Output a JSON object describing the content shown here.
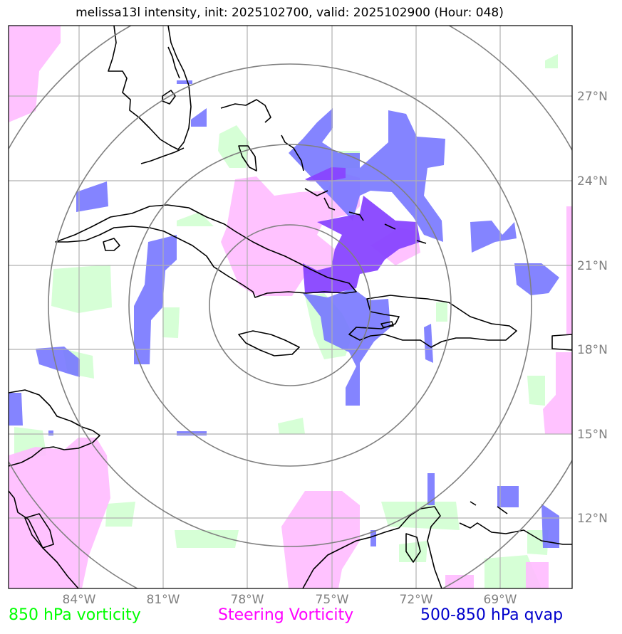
{
  "title": "melissa13l intensity, init: 2025102700, valid: 2025102900 (Hour: 048)",
  "colors": {
    "vorticity_850": "#ccffcc",
    "steering_vorticity": "#ffbbff",
    "qvap": "#7777ff",
    "overlap": "#8844ff",
    "coast": "#000000",
    "grid": "#b0b0b0",
    "rings": "#808080"
  },
  "axes": {
    "lon_ticks": [
      "84°W",
      "81°W",
      "78°W",
      "75°W",
      "72°W",
      "69°W"
    ],
    "lat_ticks": [
      "27°N",
      "24°N",
      "21°N",
      "18°N",
      "15°N",
      "12°N"
    ]
  },
  "legend": {
    "vorticity_850": "850 hPa vorticity",
    "steering_vorticity": "Steering Vorticity",
    "qvap": "500-850 hPa qvap"
  },
  "storm_center": {
    "lon": "76.3°W",
    "lat": "19.5°N"
  }
}
